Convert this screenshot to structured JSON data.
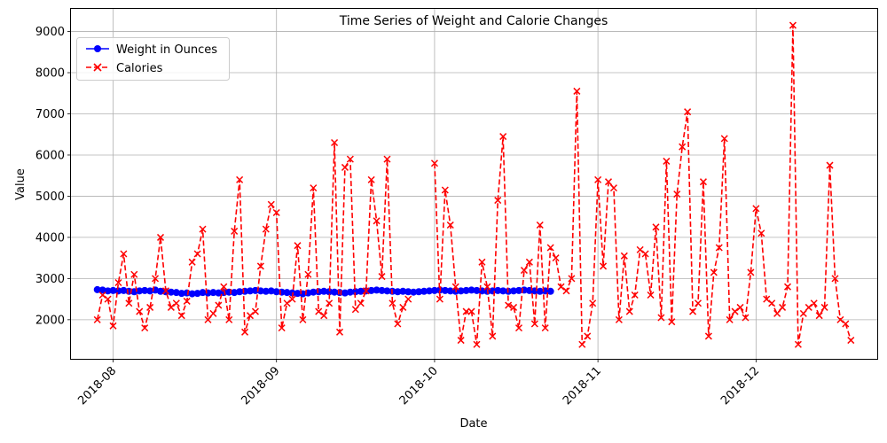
{
  "chart_data": {
    "type": "line",
    "title": "Time Series of Weight and Calorie Changes",
    "xlabel": "Date",
    "ylabel": "Value",
    "xlim": [
      "2018-07-24",
      "2018-12-24"
    ],
    "ylim": [
      1050,
      9550
    ],
    "grid": true,
    "legend_position": "upper-left",
    "x_ticks": [
      "2018-08",
      "2018-09",
      "2018-10",
      "2018-11",
      "2018-12"
    ],
    "y_ticks": [
      2000,
      3000,
      4000,
      5000,
      6000,
      7000,
      8000,
      9000
    ],
    "series": [
      {
        "name": "Weight in Ounces",
        "color": "#0000ff",
        "line_style": "solid",
        "marker": "circle",
        "points": [
          [
            "2018-07-29",
            2730
          ],
          [
            "2018-07-30",
            2720
          ],
          [
            "2018-07-31",
            2700
          ],
          [
            "2018-08-01",
            2710
          ],
          [
            "2018-08-02",
            2700
          ],
          [
            "2018-08-03",
            2710
          ],
          [
            "2018-08-04",
            2690
          ],
          [
            "2018-08-05",
            2680
          ],
          [
            "2018-08-06",
            2700
          ],
          [
            "2018-08-07",
            2710
          ],
          [
            "2018-08-08",
            2700
          ],
          [
            "2018-08-09",
            2720
          ],
          [
            "2018-08-10",
            2690
          ],
          [
            "2018-08-11",
            2680
          ],
          [
            "2018-08-12",
            2670
          ],
          [
            "2018-08-13",
            2660
          ],
          [
            "2018-08-14",
            2640
          ],
          [
            "2018-08-15",
            2650
          ],
          [
            "2018-08-16",
            2630
          ],
          [
            "2018-08-17",
            2640
          ],
          [
            "2018-08-18",
            2660
          ],
          [
            "2018-08-19",
            2650
          ],
          [
            "2018-08-20",
            2660
          ],
          [
            "2018-08-21",
            2650
          ],
          [
            "2018-08-22",
            2660
          ],
          [
            "2018-08-23",
            2670
          ],
          [
            "2018-08-24",
            2660
          ],
          [
            "2018-08-25",
            2680
          ],
          [
            "2018-08-26",
            2690
          ],
          [
            "2018-08-27",
            2700
          ],
          [
            "2018-08-28",
            2710
          ],
          [
            "2018-08-29",
            2700
          ],
          [
            "2018-08-30",
            2690
          ],
          [
            "2018-08-31",
            2700
          ],
          [
            "2018-09-01",
            2680
          ],
          [
            "2018-09-02",
            2670
          ],
          [
            "2018-09-03",
            2660
          ],
          [
            "2018-09-04",
            2650
          ],
          [
            "2018-09-05",
            2640
          ],
          [
            "2018-09-06",
            2630
          ],
          [
            "2018-09-07",
            2650
          ],
          [
            "2018-09-08",
            2670
          ],
          [
            "2018-09-09",
            2680
          ],
          [
            "2018-09-10",
            2690
          ],
          [
            "2018-09-11",
            2680
          ],
          [
            "2018-09-12",
            2670
          ],
          [
            "2018-09-13",
            2660
          ],
          [
            "2018-09-14",
            2650
          ],
          [
            "2018-09-15",
            2670
          ],
          [
            "2018-09-16",
            2680
          ],
          [
            "2018-09-17",
            2690
          ],
          [
            "2018-09-18",
            2700
          ],
          [
            "2018-09-19",
            2710
          ],
          [
            "2018-09-20",
            2720
          ],
          [
            "2018-09-21",
            2710
          ],
          [
            "2018-09-22",
            2700
          ],
          [
            "2018-09-23",
            2690
          ],
          [
            "2018-09-24",
            2680
          ],
          [
            "2018-09-25",
            2690
          ],
          [
            "2018-09-26",
            2680
          ],
          [
            "2018-09-27",
            2670
          ],
          [
            "2018-09-28",
            2680
          ],
          [
            "2018-09-29",
            2690
          ],
          [
            "2018-09-30",
            2700
          ],
          [
            "2018-10-01",
            2710
          ],
          [
            "2018-10-02",
            2720
          ],
          [
            "2018-10-03",
            2710
          ],
          [
            "2018-10-04",
            2700
          ],
          [
            "2018-10-05",
            2690
          ],
          [
            "2018-10-06",
            2700
          ],
          [
            "2018-10-07",
            2710
          ],
          [
            "2018-10-08",
            2720
          ],
          [
            "2018-10-09",
            2710
          ],
          [
            "2018-10-10",
            2700
          ],
          [
            "2018-10-11",
            2690
          ],
          [
            "2018-10-12",
            2700
          ],
          [
            "2018-10-13",
            2710
          ],
          [
            "2018-10-14",
            2700
          ],
          [
            "2018-10-15",
            2690
          ],
          [
            "2018-10-16",
            2700
          ],
          [
            "2018-10-17",
            2710
          ],
          [
            "2018-10-18",
            2720
          ],
          [
            "2018-10-19",
            2710
          ],
          [
            "2018-10-20",
            2700
          ],
          [
            "2018-10-21",
            2690
          ],
          [
            "2018-10-22",
            2700
          ],
          [
            "2018-10-23",
            2690
          ]
        ]
      },
      {
        "name": "Calories",
        "color": "#ff0000",
        "line_style": "dashed",
        "marker": "x",
        "points": [
          [
            "2018-07-29",
            2000
          ],
          [
            "2018-07-30",
            2600
          ],
          [
            "2018-07-31",
            2500
          ],
          [
            "2018-08-01",
            1850
          ],
          [
            "2018-08-02",
            2900
          ],
          [
            "2018-08-03",
            3600
          ],
          [
            "2018-08-04",
            2400
          ],
          [
            "2018-08-05",
            3100
          ],
          [
            "2018-08-06",
            2200
          ],
          [
            "2018-08-07",
            1800
          ],
          [
            "2018-08-08",
            2300
          ],
          [
            "2018-08-09",
            3000
          ],
          [
            "2018-08-10",
            4000
          ],
          [
            "2018-08-11",
            2700
          ],
          [
            "2018-08-12",
            2300
          ],
          [
            "2018-08-13",
            2400
          ],
          [
            "2018-08-14",
            2100
          ],
          [
            "2018-08-15",
            2450
          ],
          [
            "2018-08-16",
            3400
          ],
          [
            "2018-08-17",
            3600
          ],
          [
            "2018-08-18",
            4200
          ],
          [
            "2018-08-19",
            2000
          ],
          [
            "2018-08-20",
            2150
          ],
          [
            "2018-08-21",
            2350
          ],
          [
            "2018-08-22",
            2800
          ],
          [
            "2018-08-23",
            2000
          ],
          [
            "2018-08-24",
            4150
          ],
          [
            "2018-08-25",
            5400
          ],
          [
            "2018-08-26",
            1700
          ],
          [
            "2018-08-27",
            2100
          ],
          [
            "2018-08-28",
            2200
          ],
          [
            "2018-08-29",
            3300
          ],
          [
            "2018-08-30",
            4200
          ],
          [
            "2018-08-31",
            4800
          ],
          [
            "2018-09-01",
            4600
          ],
          [
            "2018-09-02",
            1800
          ],
          [
            "2018-09-03",
            2400
          ],
          [
            "2018-09-04",
            2500
          ],
          [
            "2018-09-05",
            3800
          ],
          [
            "2018-09-06",
            2000
          ],
          [
            "2018-09-07",
            3100
          ],
          [
            "2018-09-08",
            5200
          ],
          [
            "2018-09-09",
            2200
          ],
          [
            "2018-09-10",
            2100
          ],
          [
            "2018-09-11",
            2400
          ],
          [
            "2018-09-12",
            6300
          ],
          [
            "2018-09-13",
            1700
          ],
          [
            "2018-09-14",
            5700
          ],
          [
            "2018-09-15",
            5900
          ],
          [
            "2018-09-16",
            2250
          ],
          [
            "2018-09-17",
            2400
          ],
          [
            "2018-09-18",
            2700
          ],
          [
            "2018-09-19",
            5400
          ],
          [
            "2018-09-20",
            4400
          ],
          [
            "2018-09-21",
            3050
          ],
          [
            "2018-09-22",
            5900
          ],
          [
            "2018-09-23",
            2400
          ],
          [
            "2018-09-24",
            1900
          ],
          [
            "2018-09-25",
            2300
          ],
          [
            "2018-09-26",
            2500
          ],
          [
            "2018-10-01",
            5800
          ],
          [
            "2018-10-02",
            2500
          ],
          [
            "2018-10-03",
            5150
          ],
          [
            "2018-10-04",
            4300
          ],
          [
            "2018-10-05",
            2800
          ],
          [
            "2018-10-06",
            1500
          ],
          [
            "2018-10-07",
            2200
          ],
          [
            "2018-10-08",
            2200
          ],
          [
            "2018-10-09",
            1400
          ],
          [
            "2018-10-10",
            3400
          ],
          [
            "2018-10-11",
            2800
          ],
          [
            "2018-10-12",
            1600
          ],
          [
            "2018-10-13",
            4900
          ],
          [
            "2018-10-14",
            6450
          ],
          [
            "2018-10-15",
            2350
          ],
          [
            "2018-10-16",
            2300
          ],
          [
            "2018-10-17",
            1800
          ],
          [
            "2018-10-18",
            3200
          ],
          [
            "2018-10-19",
            3400
          ],
          [
            "2018-10-20",
            1900
          ],
          [
            "2018-10-21",
            4300
          ],
          [
            "2018-10-22",
            1800
          ],
          [
            "2018-10-23",
            3750
          ],
          [
            "2018-10-24",
            3500
          ],
          [
            "2018-10-25",
            2800
          ],
          [
            "2018-10-26",
            2700
          ],
          [
            "2018-10-27",
            3000
          ],
          [
            "2018-10-28",
            7550
          ],
          [
            "2018-10-29",
            1400
          ],
          [
            "2018-10-30",
            1600
          ],
          [
            "2018-10-31",
            2400
          ],
          [
            "2018-11-01",
            5400
          ],
          [
            "2018-11-02",
            3300
          ],
          [
            "2018-11-03",
            5350
          ],
          [
            "2018-11-04",
            5200
          ],
          [
            "2018-11-05",
            2000
          ],
          [
            "2018-11-06",
            3550
          ],
          [
            "2018-11-07",
            2200
          ],
          [
            "2018-11-08",
            2600
          ],
          [
            "2018-11-09",
            3700
          ],
          [
            "2018-11-10",
            3600
          ],
          [
            "2018-11-11",
            2600
          ],
          [
            "2018-11-12",
            4250
          ],
          [
            "2018-11-13",
            2050
          ],
          [
            "2018-11-14",
            5850
          ],
          [
            "2018-11-15",
            1950
          ],
          [
            "2018-11-16",
            5050
          ],
          [
            "2018-11-17",
            6200
          ],
          [
            "2018-11-18",
            7050
          ],
          [
            "2018-11-19",
            2200
          ],
          [
            "2018-11-20",
            2400
          ],
          [
            "2018-11-21",
            5350
          ],
          [
            "2018-11-22",
            1600
          ],
          [
            "2018-11-23",
            3150
          ],
          [
            "2018-11-24",
            3750
          ],
          [
            "2018-11-25",
            6400
          ],
          [
            "2018-11-26",
            2000
          ],
          [
            "2018-11-27",
            2200
          ],
          [
            "2018-11-28",
            2300
          ],
          [
            "2018-11-29",
            2050
          ],
          [
            "2018-11-30",
            3150
          ],
          [
            "2018-12-01",
            4700
          ],
          [
            "2018-12-02",
            4100
          ],
          [
            "2018-12-03",
            2500
          ],
          [
            "2018-12-04",
            2400
          ],
          [
            "2018-12-05",
            2150
          ],
          [
            "2018-12-06",
            2300
          ],
          [
            "2018-12-07",
            2800
          ],
          [
            "2018-12-08",
            9150
          ],
          [
            "2018-12-09",
            1400
          ],
          [
            "2018-12-10",
            2150
          ],
          [
            "2018-12-11",
            2300
          ],
          [
            "2018-12-12",
            2400
          ],
          [
            "2018-12-13",
            2100
          ],
          [
            "2018-12-14",
            2300
          ],
          [
            "2018-12-15",
            5750
          ],
          [
            "2018-12-16",
            3000
          ],
          [
            "2018-12-17",
            2000
          ],
          [
            "2018-12-18",
            1900
          ],
          [
            "2018-12-19",
            1500
          ]
        ]
      }
    ]
  }
}
